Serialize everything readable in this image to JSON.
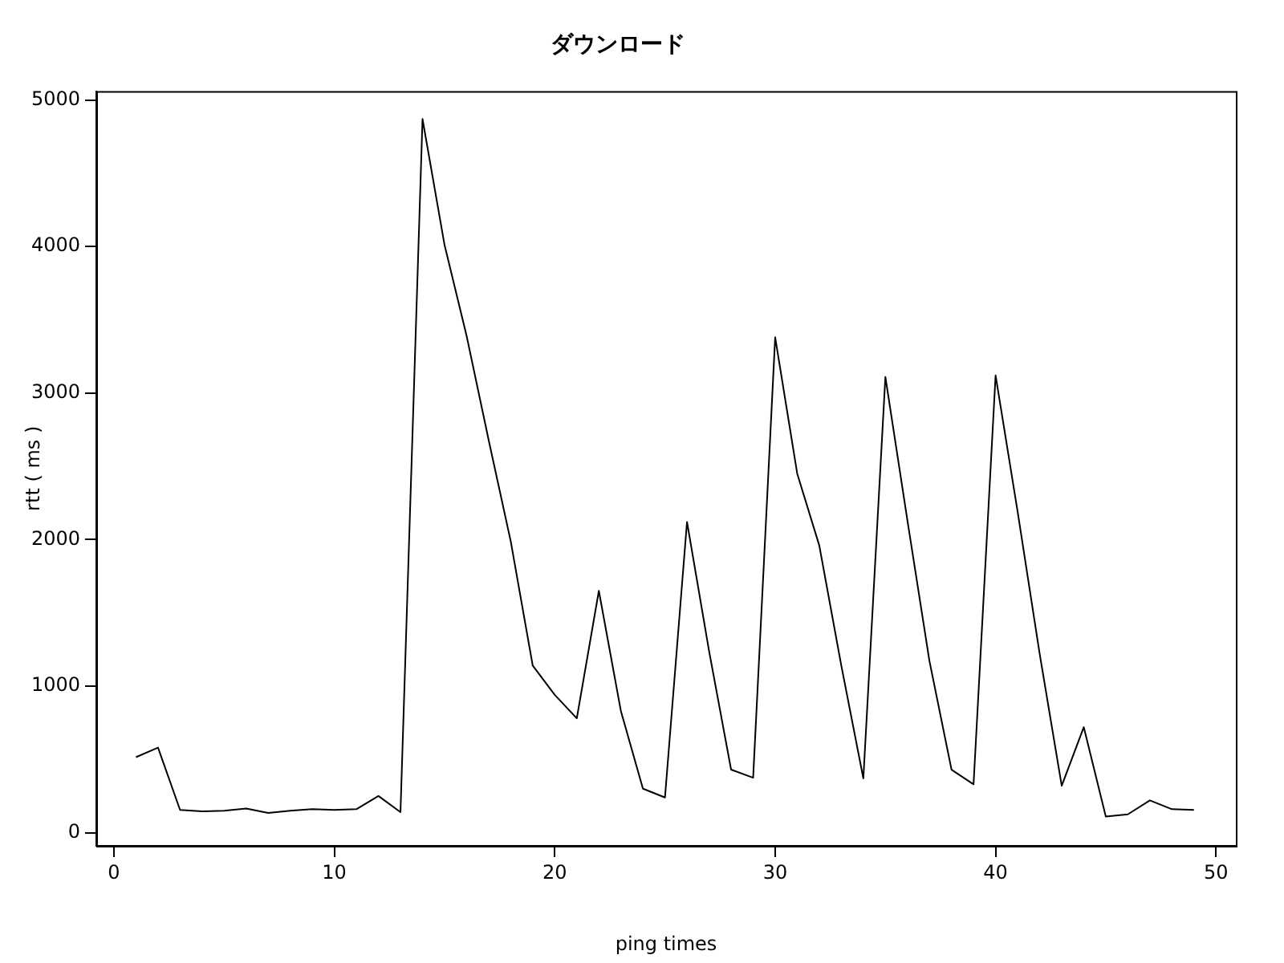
{
  "chart_data": {
    "type": "line",
    "title": "ダウンロード",
    "xlabel": "ping times",
    "ylabel": "rtt ( ms )",
    "x": [
      1,
      2,
      3,
      4,
      5,
      6,
      7,
      8,
      9,
      10,
      11,
      12,
      13,
      14,
      15,
      16,
      17,
      18,
      19,
      20,
      21,
      22,
      23,
      24,
      25,
      26,
      27,
      28,
      29,
      30,
      31,
      32,
      33,
      34,
      35,
      36,
      37,
      38,
      39,
      40,
      41,
      42,
      43,
      44,
      45,
      46,
      47,
      48,
      49
    ],
    "series": [
      {
        "color": "#000000",
        "values": [
          515,
          580,
          155,
          145,
          150,
          165,
          135,
          150,
          160,
          155,
          160,
          250,
          140,
          4870,
          4010,
          3390,
          2680,
          1990,
          1140,
          940,
          780,
          1650,
          830,
          300,
          240,
          2120,
          1240,
          430,
          375,
          3380,
          2450,
          1960,
          1140,
          370,
          3110,
          2130,
          1170,
          430,
          330,
          3120,
          2190,
          1220,
          320,
          720,
          110,
          125,
          220,
          160,
          155
        ]
      }
    ],
    "xlim": [
      -0.8,
      50.9
    ],
    "ylim": [
      -90,
      5060
    ],
    "xticks": [
      0,
      10,
      20,
      30,
      40,
      50
    ],
    "yticks": [
      0,
      1000,
      2000,
      3000,
      4000,
      5000
    ],
    "grid": false,
    "legend": false,
    "marker": "none",
    "line_style": "solid"
  }
}
